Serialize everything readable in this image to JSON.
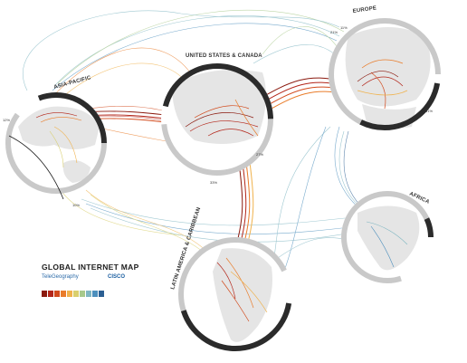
{
  "title": "GLOBAL INTERNET MAP",
  "brand": "TeleGeography",
  "sponsor": "CISCO",
  "regions": [
    {
      "key": "asia",
      "label": "ASIA-PACIFIC"
    },
    {
      "key": "us",
      "label": "UNITED STATES & CANADA"
    },
    {
      "key": "europe",
      "label": "EUROPE"
    },
    {
      "key": "latam",
      "label": "LATIN AMERICA & CARIBBEAN"
    },
    {
      "key": "africa",
      "label": "AFRICA"
    }
  ],
  "percent_labels": [
    "21%",
    "11%",
    "61%",
    "33%",
    "10%",
    "27%",
    "12%"
  ],
  "legend_colors": [
    "#8b1a0f",
    "#b3261a",
    "#d24a1c",
    "#e97c2a",
    "#f0b24c",
    "#d9cf6d",
    "#a8c98b",
    "#7fb6c2",
    "#4c8fbd",
    "#2b5f93"
  ],
  "colors": {
    "ring": "#2b2b2b",
    "ring_alt": "#c9c9c9",
    "land": "#e5e5e5",
    "heavy": "#b3261a",
    "medium": "#e97c2a",
    "light": "#7fb6c2"
  }
}
